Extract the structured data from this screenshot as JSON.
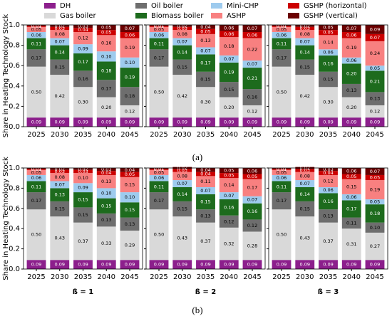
{
  "chart_data": [
    {
      "type": "stacked_bar",
      "ylabel": "Share in Heating Technology Stock",
      "categories": [
        "2025",
        "2030",
        "2035",
        "2040",
        "2045"
      ],
      "ylim": [
        0,
        1
      ],
      "yticks": [
        {
          "value": 0,
          "label": "0.0"
        },
        {
          "value": 0.2,
          "label": "0.2"
        },
        {
          "value": 0.4,
          "label": "0.4"
        },
        {
          "value": 0.6,
          "label": "0.6"
        },
        {
          "value": 0.8,
          "label": "0.8"
        },
        {
          "value": 1,
          "label": "1.0"
        }
      ],
      "series": [
        {
          "name": "DH",
          "color": "#8c1f8c",
          "values": [
            0.09,
            0.09,
            0.09,
            0.09,
            0.09
          ]
        },
        {
          "name": "Gas boiler",
          "color": "#d9d9d9",
          "values": [
            0.5,
            0.42,
            0.3,
            0.2,
            0.12
          ],
          "value_labels": [
            "0.50",
            "0.42",
            "0.30",
            "0.20",
            "0.12"
          ]
        },
        {
          "name": "Oil boiler",
          "color": "#6e6e6e",
          "values": [
            0.17,
            0.15,
            0.16,
            0.17,
            0.18
          ]
        },
        {
          "name": "Biomass boiler",
          "color": "#1d6b1d",
          "values": [
            0.11,
            0.14,
            0.17,
            0.18,
            0.19
          ]
        },
        {
          "name": "Mini-CHP",
          "color": "#9ecbee",
          "values": [
            0.06,
            0.07,
            0.09,
            0.1,
            0.1
          ],
          "value_labels": [
            "0.06",
            "0.07",
            "0.09",
            "0.10",
            "0.10"
          ]
        },
        {
          "name": "ASHP",
          "color": "#f88080",
          "values": [
            0.05,
            0.08,
            0.12,
            0.16,
            0.19
          ]
        },
        {
          "name": "GSHP (horizontal)",
          "color": "#cc0000",
          "values": [
            0.01,
            0.03,
            0.04,
            0.05,
            0.06
          ]
        },
        {
          "name": "GSHP (vertical)",
          "color": "#6b0000",
          "values": [
            0.01,
            0.02,
            0.03,
            0.05,
            0.07
          ]
        }
      ]
    },
    {
      "type": "stacked_bar",
      "categories": [
        "2025",
        "2030",
        "2035",
        "2040",
        "2045"
      ],
      "ylim": [
        0,
        1
      ],
      "yticks": [
        0,
        0.2,
        0.4,
        0.6,
        0.8,
        1
      ],
      "series": [
        {
          "name": "DH",
          "color": "#8c1f8c",
          "values": [
            0.09,
            0.09,
            0.09,
            0.09,
            0.09
          ]
        },
        {
          "name": "Gas boiler",
          "color": "#d9d9d9",
          "values": [
            0.5,
            0.42,
            0.3,
            0.2,
            0.12
          ],
          "value_labels": [
            "0.50",
            "0.42",
            "0.30",
            "0.20",
            "0.12"
          ]
        },
        {
          "name": "Oil boiler",
          "color": "#6e6e6e",
          "values": [
            0.17,
            0.15,
            0.15,
            0.15,
            0.16
          ]
        },
        {
          "name": "Biomass boiler",
          "color": "#1d6b1d",
          "values": [
            0.11,
            0.14,
            0.17,
            0.19,
            0.21
          ]
        },
        {
          "name": "Mini-CHP",
          "color": "#9ecbee",
          "values": [
            0.06,
            0.07,
            0.07,
            0.07,
            0.07
          ]
        },
        {
          "name": "ASHP",
          "color": "#f88080",
          "values": [
            0.05,
            0.08,
            0.13,
            0.18,
            0.22
          ]
        },
        {
          "name": "GSHP (horizontal)",
          "color": "#cc0000",
          "values": [
            0.01,
            0.03,
            0.05,
            0.06,
            0.06
          ]
        },
        {
          "name": "GSHP (vertical)",
          "color": "#6b0000",
          "values": [
            0.01,
            0.02,
            0.04,
            0.06,
            0.07
          ]
        }
      ]
    },
    {
      "type": "stacked_bar",
      "categories": [
        "2025",
        "2030",
        "2035",
        "2040",
        "2045"
      ],
      "ylim": [
        0,
        1
      ],
      "yticks": [
        0,
        0.2,
        0.4,
        0.6,
        0.8,
        1
      ],
      "series": [
        {
          "name": "DH",
          "color": "#8c1f8c",
          "values": [
            0.09,
            0.09,
            0.09,
            0.09,
            0.09
          ]
        },
        {
          "name": "Gas boiler",
          "color": "#d9d9d9",
          "values": [
            0.5,
            0.42,
            0.3,
            0.2,
            0.12
          ],
          "value_labels": [
            "0.50",
            "0.42",
            "0.30",
            "0.20",
            "0.12"
          ]
        },
        {
          "name": "Oil boiler",
          "color": "#6e6e6e",
          "values": [
            0.17,
            0.15,
            0.15,
            0.13,
            0.13
          ]
        },
        {
          "name": "Biomass boiler",
          "color": "#1d6b1d",
          "values": [
            0.11,
            0.14,
            0.16,
            0.2,
            0.21
          ],
          "value_labels": [
            "0.11",
            "0.14",
            "0.16",
            "0.20",
            "0.21"
          ]
        },
        {
          "name": "Mini-CHP",
          "color": "#9ecbee",
          "values": [
            0.06,
            0.07,
            0.06,
            0.06,
            0.05
          ]
        },
        {
          "name": "ASHP",
          "color": "#f88080",
          "values": [
            0.05,
            0.08,
            0.14,
            0.19,
            0.24
          ]
        },
        {
          "name": "GSHP (horizontal)",
          "color": "#cc0000",
          "values": [
            0.01,
            0.03,
            0.05,
            0.06,
            0.07
          ]
        },
        {
          "name": "GSHP (vertical)",
          "color": "#6b0000",
          "values": [
            0.01,
            0.02,
            0.05,
            0.07,
            0.09
          ]
        }
      ]
    },
    {
      "type": "stacked_bar",
      "ylabel": "Share in Heating Technology Stock",
      "xlabel": "ß = 1",
      "categories": [
        "2025",
        "2030",
        "2035",
        "2040",
        "2045"
      ],
      "ylim": [
        0,
        1
      ],
      "yticks": [
        {
          "value": 0,
          "label": "0.0"
        },
        {
          "value": 0.2,
          "label": "0.2"
        },
        {
          "value": 0.4,
          "label": "0.4"
        },
        {
          "value": 0.6,
          "label": "0.6"
        },
        {
          "value": 0.8,
          "label": "0.8"
        },
        {
          "value": 1,
          "label": "1.0"
        }
      ],
      "series": [
        {
          "name": "DH",
          "color": "#8c1f8c",
          "values": [
            0.09,
            0.09,
            0.09,
            0.09,
            0.09
          ]
        },
        {
          "name": "Gas boiler",
          "color": "#d9d9d9",
          "values": [
            0.5,
            0.43,
            0.37,
            0.33,
            0.29
          ],
          "value_labels": [
            "0.50",
            "0.43",
            "0.37",
            "0.33",
            "0.29"
          ]
        },
        {
          "name": "Oil boiler",
          "color": "#6e6e6e",
          "values": [
            0.17,
            0.15,
            0.15,
            0.13,
            0.13
          ]
        },
        {
          "name": "Biomass boiler",
          "color": "#1d6b1d",
          "values": [
            0.11,
            0.13,
            0.15,
            0.15,
            0.15
          ]
        },
        {
          "name": "Mini-CHP",
          "color": "#9ecbee",
          "values": [
            0.06,
            0.07,
            0.09,
            0.1,
            0.1
          ],
          "value_labels": [
            "0.06",
            "0.07",
            "0.09",
            "0.10",
            "0.10"
          ]
        },
        {
          "name": "ASHP",
          "color": "#f88080",
          "values": [
            0.05,
            0.08,
            0.1,
            0.13,
            0.15
          ],
          "value_labels": [
            "0.05",
            "0.08",
            "0.10",
            "0.13",
            "0.15"
          ]
        },
        {
          "name": "GSHP (horizontal)",
          "color": "#cc0000",
          "values": [
            0.01,
            0.03,
            0.03,
            0.04,
            0.05
          ]
        },
        {
          "name": "GSHP (vertical)",
          "color": "#6b0000",
          "values": [
            0.01,
            0.02,
            0.02,
            0.03,
            0.04
          ]
        }
      ]
    },
    {
      "type": "stacked_bar",
      "xlabel": "ß = 2",
      "categories": [
        "2025",
        "2030",
        "2035",
        "2040",
        "2045"
      ],
      "ylim": [
        0,
        1
      ],
      "yticks": [
        0,
        0.2,
        0.4,
        0.6,
        0.8,
        1
      ],
      "series": [
        {
          "name": "DH",
          "color": "#8c1f8c",
          "values": [
            0.09,
            0.09,
            0.09,
            0.09,
            0.09
          ]
        },
        {
          "name": "Gas boiler",
          "color": "#d9d9d9",
          "values": [
            0.5,
            0.43,
            0.37,
            0.32,
            0.28
          ],
          "value_labels": [
            "0.50",
            "0.43",
            "0.37",
            "0.32",
            "0.28"
          ]
        },
        {
          "name": "Oil boiler",
          "color": "#6e6e6e",
          "values": [
            0.17,
            0.15,
            0.13,
            0.12,
            0.12
          ]
        },
        {
          "name": "Biomass boiler",
          "color": "#1d6b1d",
          "values": [
            0.11,
            0.14,
            0.15,
            0.16,
            0.16
          ]
        },
        {
          "name": "Mini-CHP",
          "color": "#9ecbee",
          "values": [
            0.06,
            0.07,
            0.07,
            0.07,
            0.07
          ]
        },
        {
          "name": "ASHP",
          "color": "#f88080",
          "values": [
            0.05,
            0.08,
            0.11,
            0.14,
            0.17
          ]
        },
        {
          "name": "GSHP (horizontal)",
          "color": "#cc0000",
          "values": [
            0.01,
            0.03,
            0.04,
            0.05,
            0.05
          ]
        },
        {
          "name": "GSHP (vertical)",
          "color": "#6b0000",
          "values": [
            0.01,
            0.02,
            0.04,
            0.05,
            0.06
          ]
        }
      ]
    },
    {
      "type": "stacked_bar",
      "xlabel": "ß = 3",
      "categories": [
        "2025",
        "2030",
        "2035",
        "2040",
        "2045"
      ],
      "ylim": [
        0,
        1
      ],
      "yticks": [
        0,
        0.2,
        0.4,
        0.6,
        0.8,
        1
      ],
      "series": [
        {
          "name": "DH",
          "color": "#8c1f8c",
          "values": [
            0.09,
            0.09,
            0.09,
            0.09,
            0.09
          ]
        },
        {
          "name": "Gas boiler",
          "color": "#d9d9d9",
          "values": [
            0.5,
            0.43,
            0.37,
            0.31,
            0.27
          ],
          "value_labels": [
            "0.50",
            "0.43",
            "0.37",
            "0.31",
            "0.27"
          ]
        },
        {
          "name": "Oil boiler",
          "color": "#6e6e6e",
          "values": [
            0.17,
            0.15,
            0.13,
            0.11,
            0.1
          ],
          "value_labels": [
            "0.17",
            "0.15",
            "0.13",
            "0.11",
            "0.10"
          ]
        },
        {
          "name": "Biomass boiler",
          "color": "#1d6b1d",
          "values": [
            0.11,
            0.14,
            0.16,
            0.17,
            0.18
          ]
        },
        {
          "name": "Mini-CHP",
          "color": "#9ecbee",
          "values": [
            0.06,
            0.07,
            0.06,
            0.06,
            0.05
          ]
        },
        {
          "name": "ASHP",
          "color": "#f88080",
          "values": [
            0.05,
            0.08,
            0.12,
            0.15,
            0.19
          ]
        },
        {
          "name": "GSHP (horizontal)",
          "color": "#cc0000",
          "values": [
            0.01,
            0.03,
            0.04,
            0.05,
            0.05
          ]
        },
        {
          "name": "GSHP (vertical)",
          "color": "#6b0000",
          "values": [
            0.01,
            0.02,
            0.03,
            0.06,
            0.07
          ]
        }
      ]
    }
  ],
  "subfigure_labels": [
    "(a)",
    "(b)"
  ]
}
